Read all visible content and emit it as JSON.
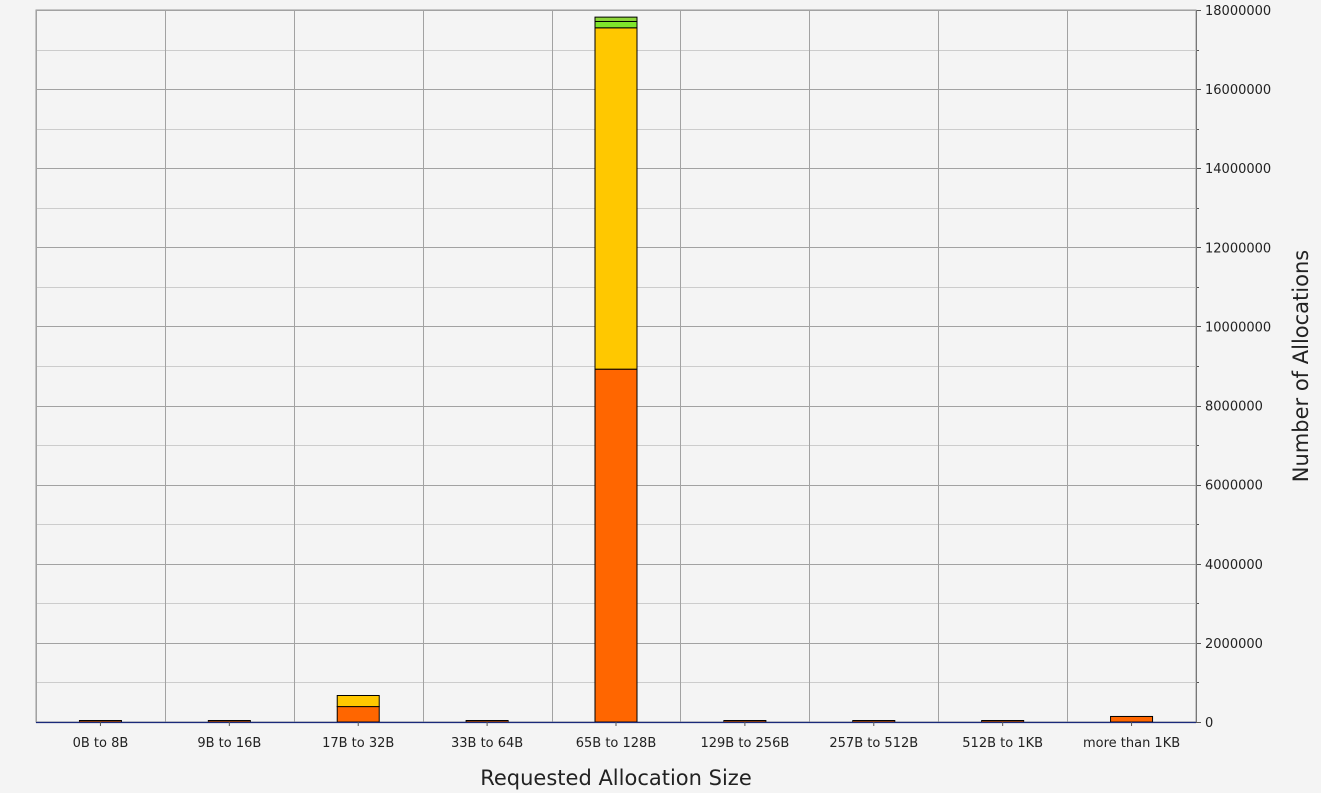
{
  "chart_data": {
    "type": "bar",
    "stacked": true,
    "title": "",
    "xlabel": "Requested Allocation Size",
    "ylabel": "Number of Allocations",
    "ylim": [
      0,
      18000000
    ],
    "y_axis_side": "right",
    "y_ticks": [
      0,
      2000000,
      4000000,
      6000000,
      8000000,
      10000000,
      12000000,
      14000000,
      16000000,
      18000000
    ],
    "y_tick_labels": [
      "0",
      "2000000",
      "4000000",
      "6000000",
      "8000000",
      "10000000",
      "12000000",
      "14000000",
      "16000000",
      "18000000"
    ],
    "grid": true,
    "legend": "none",
    "categories": [
      "0B to 8B",
      "9B to 16B",
      "17B to 32B",
      "33B to 64B",
      "65B to 128B",
      "129B to 256B",
      "257B to 512B",
      "512B to 1KB",
      "more than 1KB"
    ],
    "series": [
      {
        "color": "#ff6600",
        "values": [
          10000,
          10000,
          390000,
          10000,
          8920000,
          10000,
          10000,
          10000,
          140000
        ]
      },
      {
        "color": "#ffc800",
        "values": [
          0,
          0,
          280000,
          0,
          8630000,
          0,
          0,
          0,
          0
        ]
      },
      {
        "color": "#7fe52b",
        "values": [
          0,
          0,
          0,
          0,
          160000,
          0,
          0,
          0,
          0
        ]
      },
      {
        "color": "#8fd63a",
        "values": [
          0,
          0,
          0,
          0,
          110000,
          0,
          0,
          0,
          0
        ]
      }
    ]
  }
}
